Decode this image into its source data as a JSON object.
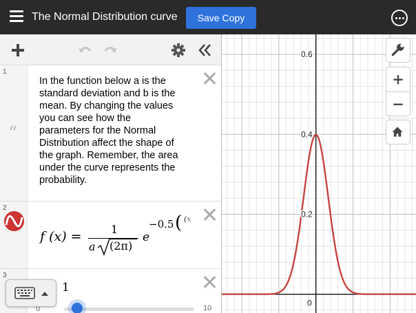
{
  "header": {
    "title": "The Normal Distribution curve",
    "save_button": "Save Copy",
    "menu_icon": "hamburger-icon",
    "more_icon": "more-options-icon"
  },
  "toolbar": {
    "icons": [
      "add-icon",
      "undo-icon",
      "redo-icon",
      "settings-icon",
      "collapse-icon"
    ]
  },
  "expressions": [
    {
      "index": "1",
      "type": "note",
      "icon": "quote-icon",
      "lines": [
        "In the function below a is the",
        "standard deviation and b is the",
        "mean. By changing the values",
        "you can see how the",
        "parameters for the Normal",
        "Distribution affect the shape of",
        "the graph. Remember, the area",
        "under the curve represents the",
        "probability."
      ]
    },
    {
      "index": "2",
      "type": "expression",
      "icon": "desmos-logo",
      "latex_parts": {
        "lhs": "f (x) =",
        "numerator": "1",
        "denominator_a": "a",
        "denominator_inner": "(2π)",
        "e": "e",
        "exponent": "−0.5",
        "exponent_paren": "(",
        "exponent_frac": "(x"
      }
    },
    {
      "index": "3",
      "type": "slider",
      "value": "1",
      "slider_min": "0",
      "slider_max": "10",
      "slider_fraction": 0.1
    }
  ],
  "graph": {
    "x_tick_labels": [
      "0"
    ],
    "y_tick_labels": [
      "0.6",
      "0.4",
      "0.2"
    ],
    "x_range": [
      -1.27,
      1.35
    ],
    "y_range": [
      -0.047,
      0.65
    ],
    "curve": {
      "mean": 0,
      "sd": 1,
      "color": "#c74440"
    },
    "buttons": [
      "wrench-icon",
      "zoom-in-icon",
      "zoom-out-icon",
      "home-icon"
    ]
  },
  "keyboard": {
    "icon": "keyboard-icon",
    "toggle_icon": "caret-up-icon"
  },
  "colors": {
    "header_bg": "#2a2a2a",
    "save_button": "#2f72dc",
    "curve": "#c74440"
  }
}
